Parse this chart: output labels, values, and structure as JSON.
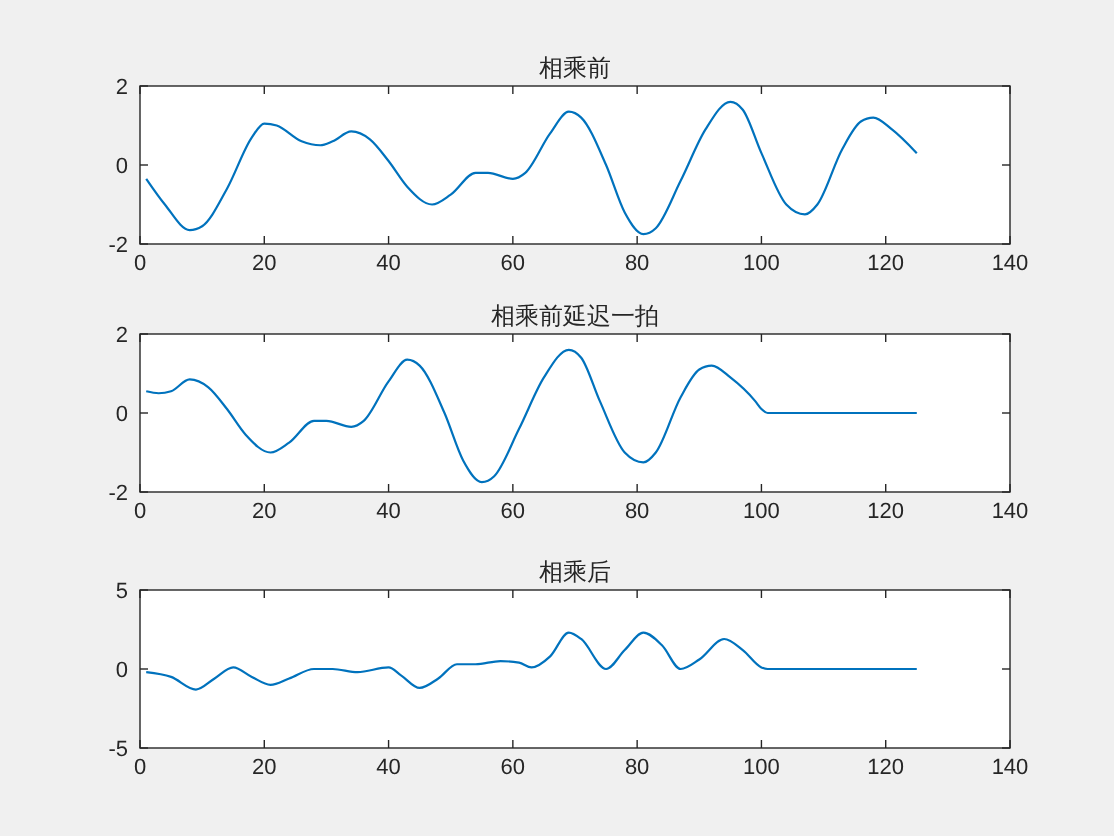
{
  "chart_data": [
    {
      "type": "line",
      "title": "相乘前",
      "xlim": [
        0,
        140
      ],
      "xticks": [
        0,
        20,
        40,
        60,
        80,
        100,
        120,
        140
      ],
      "ylim": [
        -2,
        2
      ],
      "yticks": [
        -2,
        0,
        2
      ],
      "grid": false,
      "series": [
        {
          "color": "#0072bd",
          "x": [
            1,
            4,
            8,
            10,
            14,
            18,
            20,
            22,
            26,
            29,
            31,
            34,
            37,
            40,
            43,
            47,
            50,
            54,
            56,
            60,
            62,
            66,
            69,
            71,
            75,
            78,
            81,
            83,
            87,
            91,
            95,
            97,
            100,
            104,
            107,
            109,
            113,
            116,
            118,
            121,
            125
          ],
          "values": [
            -0.35,
            -1.0,
            -1.65,
            -1.55,
            -0.6,
            0.7,
            1.05,
            1.0,
            0.6,
            0.5,
            0.6,
            0.85,
            0.65,
            0.1,
            -0.55,
            -1.0,
            -0.75,
            -0.2,
            -0.2,
            -0.35,
            -0.2,
            0.8,
            1.35,
            1.2,
            0,
            -1.2,
            -1.75,
            -1.6,
            -0.4,
            0.9,
            1.6,
            1.4,
            0.3,
            -1.0,
            -1.25,
            -1.0,
            0.4,
            1.1,
            1.2,
            0.9,
            0.3
          ]
        }
      ]
    },
    {
      "type": "line",
      "title": "相乘前延迟一拍",
      "xlim": [
        0,
        140
      ],
      "xticks": [
        0,
        20,
        40,
        60,
        80,
        100,
        120,
        140
      ],
      "ylim": [
        -2,
        2
      ],
      "yticks": [
        -2,
        0,
        2
      ],
      "grid": false,
      "series": [
        {
          "color": "#0072bd",
          "x": [
            1,
            3,
            5,
            8,
            11,
            14,
            17,
            21,
            24,
            28,
            30,
            34,
            36,
            40,
            43,
            45,
            49,
            52,
            55,
            57,
            61,
            65,
            69,
            71,
            74,
            78,
            81,
            83,
            87,
            90,
            92,
            95,
            99,
            100,
            101,
            125
          ],
          "values": [
            0.55,
            0.5,
            0.55,
            0.85,
            0.65,
            0.1,
            -0.55,
            -1.0,
            -0.75,
            -0.2,
            -0.2,
            -0.35,
            -0.2,
            0.8,
            1.35,
            1.2,
            0,
            -1.2,
            -1.75,
            -1.6,
            -0.4,
            0.9,
            1.6,
            1.4,
            0.3,
            -1.0,
            -1.25,
            -1.0,
            0.4,
            1.1,
            1.2,
            0.9,
            0.3,
            0.1,
            0,
            0
          ]
        }
      ]
    },
    {
      "type": "line",
      "title": "相乘后",
      "xlim": [
        0,
        140
      ],
      "xticks": [
        0,
        20,
        40,
        60,
        80,
        100,
        120,
        140
      ],
      "ylim": [
        -5,
        5
      ],
      "yticks": [
        -5,
        0,
        5
      ],
      "grid": false,
      "series": [
        {
          "color": "#0072bd",
          "x": [
            1,
            5,
            9,
            12,
            15,
            18,
            21,
            24,
            28,
            31,
            35,
            40,
            42,
            45,
            48,
            51,
            54,
            58,
            61,
            63,
            66,
            69,
            71,
            75,
            78,
            81,
            84,
            87,
            90,
            94,
            97,
            100,
            101,
            125
          ],
          "values": [
            -0.2,
            -0.5,
            -1.3,
            -0.6,
            0.1,
            -0.5,
            -1.0,
            -0.6,
            0,
            0,
            -0.2,
            0.1,
            -0.4,
            -1.2,
            -0.6,
            0.3,
            0.3,
            0.5,
            0.4,
            0.1,
            0.8,
            2.3,
            1.9,
            0,
            1.2,
            2.3,
            1.5,
            0,
            0.6,
            1.9,
            1.2,
            0.1,
            0,
            0
          ]
        }
      ]
    }
  ]
}
